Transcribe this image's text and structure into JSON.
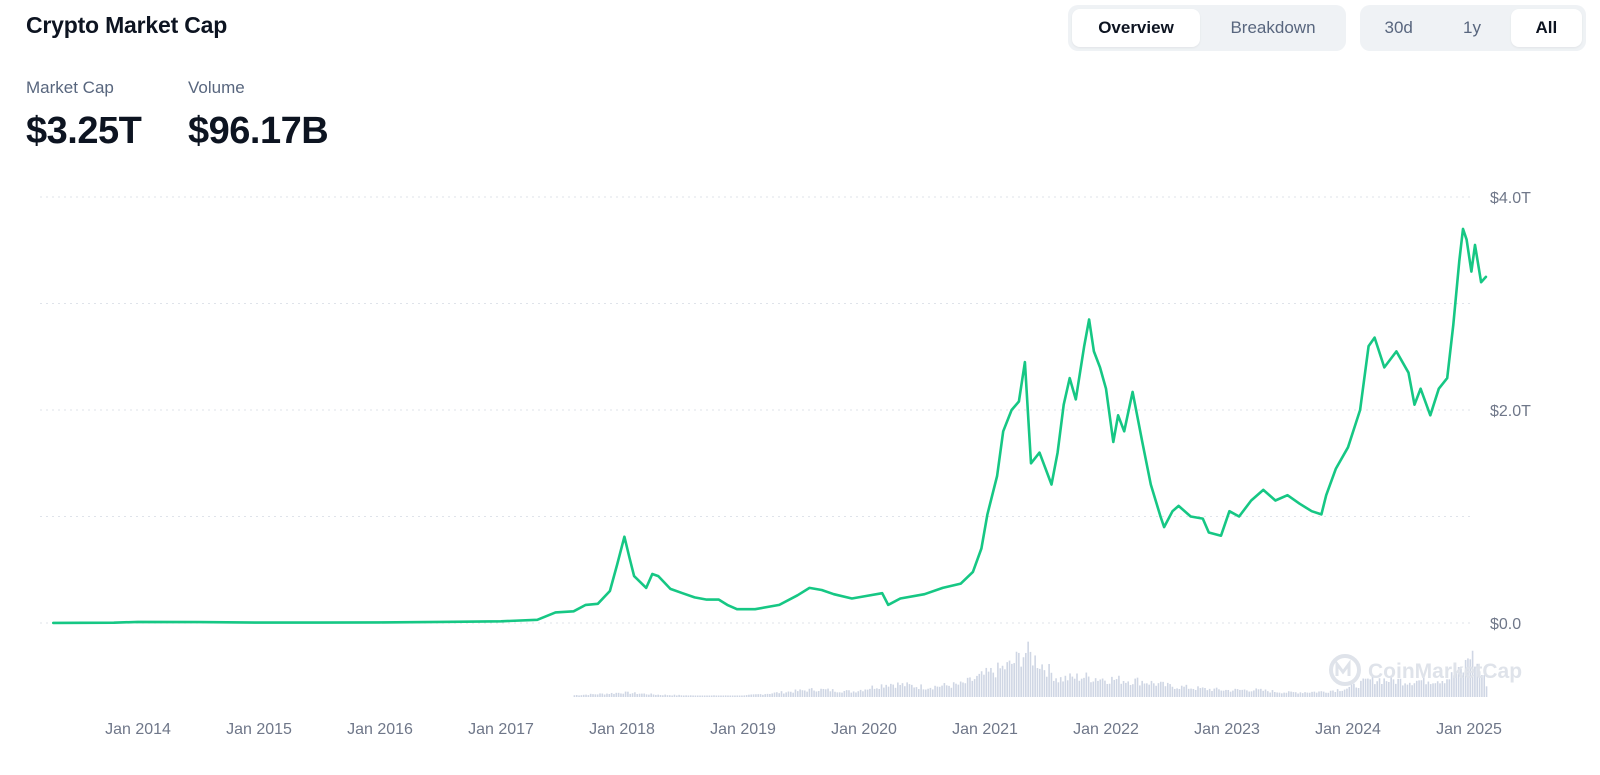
{
  "header": {
    "title": "Crypto Market Cap",
    "view_tabs": [
      "Overview",
      "Breakdown"
    ],
    "view_active": "Overview",
    "range_tabs": [
      "30d",
      "1y",
      "All"
    ],
    "range_active": "All"
  },
  "stats": {
    "market_cap_label": "Market Cap",
    "market_cap_value": "$3.25T",
    "volume_label": "Volume",
    "volume_value": "$96.17B"
  },
  "watermark": "CoinMarketCap",
  "colors": {
    "line": "#16c784",
    "volume": "#cfd6e4",
    "grid": "#dfe3ea",
    "text": "#0d1421",
    "muted": "#58667e"
  },
  "chart_data": {
    "type": "line",
    "title": "",
    "xlabel": "",
    "ylabel": "",
    "x_tick_labels": [
      "Jan 2014",
      "Jan 2015",
      "Jan 2016",
      "Jan 2017",
      "Jan 2018",
      "Jan 2019",
      "Jan 2020",
      "Jan 2021",
      "Jan 2022",
      "Jan 2023",
      "Jan 2024",
      "Jan 2025"
    ],
    "y_tick_labels": [
      "$4.0T",
      "$2.0T",
      "$0.0"
    ],
    "ylim": [
      0,
      4.0
    ],
    "y_unit": "T USD",
    "grid": true,
    "series": [
      {
        "values": [
          [
            2013.3,
            0.001
          ],
          [
            2013.8,
            0.003
          ],
          [
            2014.0,
            0.01
          ],
          [
            2014.5,
            0.008
          ],
          [
            2015.0,
            0.004
          ],
          [
            2015.5,
            0.004
          ],
          [
            2016.0,
            0.006
          ],
          [
            2016.5,
            0.01
          ],
          [
            2017.0,
            0.016
          ],
          [
            2017.3,
            0.03
          ],
          [
            2017.45,
            0.1
          ],
          [
            2017.6,
            0.11
          ],
          [
            2017.7,
            0.17
          ],
          [
            2017.8,
            0.18
          ],
          [
            2017.9,
            0.3
          ],
          [
            2017.96,
            0.55
          ],
          [
            2018.02,
            0.81
          ],
          [
            2018.06,
            0.62
          ],
          [
            2018.1,
            0.44
          ],
          [
            2018.2,
            0.33
          ],
          [
            2018.25,
            0.46
          ],
          [
            2018.3,
            0.44
          ],
          [
            2018.4,
            0.32
          ],
          [
            2018.5,
            0.28
          ],
          [
            2018.6,
            0.24
          ],
          [
            2018.7,
            0.22
          ],
          [
            2018.8,
            0.22
          ],
          [
            2018.87,
            0.17
          ],
          [
            2018.95,
            0.13
          ],
          [
            2019.1,
            0.13
          ],
          [
            2019.3,
            0.17
          ],
          [
            2019.45,
            0.26
          ],
          [
            2019.55,
            0.33
          ],
          [
            2019.65,
            0.31
          ],
          [
            2019.75,
            0.27
          ],
          [
            2019.9,
            0.23
          ],
          [
            2020.0,
            0.25
          ],
          [
            2020.15,
            0.28
          ],
          [
            2020.2,
            0.17
          ],
          [
            2020.3,
            0.23
          ],
          [
            2020.5,
            0.27
          ],
          [
            2020.65,
            0.33
          ],
          [
            2020.8,
            0.37
          ],
          [
            2020.9,
            0.48
          ],
          [
            2020.97,
            0.7
          ],
          [
            2021.02,
            1.02
          ],
          [
            2021.1,
            1.38
          ],
          [
            2021.15,
            1.8
          ],
          [
            2021.22,
            2.0
          ],
          [
            2021.28,
            2.08
          ],
          [
            2021.33,
            2.45
          ],
          [
            2021.38,
            1.5
          ],
          [
            2021.45,
            1.6
          ],
          [
            2021.55,
            1.3
          ],
          [
            2021.6,
            1.6
          ],
          [
            2021.65,
            2.05
          ],
          [
            2021.7,
            2.3
          ],
          [
            2021.75,
            2.1
          ],
          [
            2021.82,
            2.6
          ],
          [
            2021.86,
            2.85
          ],
          [
            2021.9,
            2.55
          ],
          [
            2021.95,
            2.4
          ],
          [
            2022.0,
            2.2
          ],
          [
            2022.06,
            1.7
          ],
          [
            2022.1,
            1.95
          ],
          [
            2022.15,
            1.8
          ],
          [
            2022.22,
            2.17
          ],
          [
            2022.3,
            1.7
          ],
          [
            2022.37,
            1.3
          ],
          [
            2022.45,
            1.0
          ],
          [
            2022.48,
            0.9
          ],
          [
            2022.55,
            1.05
          ],
          [
            2022.6,
            1.1
          ],
          [
            2022.7,
            1.0
          ],
          [
            2022.8,
            0.98
          ],
          [
            2022.85,
            0.85
          ],
          [
            2022.95,
            0.82
          ],
          [
            2023.02,
            1.05
          ],
          [
            2023.1,
            1.0
          ],
          [
            2023.2,
            1.15
          ],
          [
            2023.3,
            1.25
          ],
          [
            2023.4,
            1.15
          ],
          [
            2023.5,
            1.2
          ],
          [
            2023.6,
            1.12
          ],
          [
            2023.7,
            1.05
          ],
          [
            2023.78,
            1.02
          ],
          [
            2023.82,
            1.2
          ],
          [
            2023.9,
            1.45
          ],
          [
            2024.0,
            1.65
          ],
          [
            2024.1,
            2.0
          ],
          [
            2024.17,
            2.6
          ],
          [
            2024.22,
            2.68
          ],
          [
            2024.3,
            2.4
          ],
          [
            2024.4,
            2.55
          ],
          [
            2024.5,
            2.35
          ],
          [
            2024.55,
            2.05
          ],
          [
            2024.6,
            2.2
          ],
          [
            2024.68,
            1.95
          ],
          [
            2024.75,
            2.2
          ],
          [
            2024.82,
            2.3
          ],
          [
            2024.87,
            2.8
          ],
          [
            2024.92,
            3.4
          ],
          [
            2024.95,
            3.7
          ],
          [
            2024.98,
            3.6
          ],
          [
            2025.02,
            3.3
          ],
          [
            2025.05,
            3.55
          ],
          [
            2025.1,
            3.2
          ],
          [
            2025.14,
            3.25
          ]
        ]
      }
    ],
    "volume_series": {
      "unit": "relative",
      "values": [
        [
          2017.6,
          0.04
        ],
        [
          2017.9,
          0.08
        ],
        [
          2018.0,
          0.1
        ],
        [
          2018.3,
          0.05
        ],
        [
          2018.6,
          0.03
        ],
        [
          2019.0,
          0.03
        ],
        [
          2019.3,
          0.1
        ],
        [
          2019.6,
          0.17
        ],
        [
          2019.9,
          0.12
        ],
        [
          2020.2,
          0.3
        ],
        [
          2020.5,
          0.22
        ],
        [
          2020.8,
          0.28
        ],
        [
          2021.0,
          0.5
        ],
        [
          2021.2,
          0.7
        ],
        [
          2021.33,
          1.0
        ],
        [
          2021.45,
          0.75
        ],
        [
          2021.6,
          0.4
        ],
        [
          2021.8,
          0.45
        ],
        [
          2022.0,
          0.4
        ],
        [
          2022.3,
          0.35
        ],
        [
          2022.5,
          0.25
        ],
        [
          2022.8,
          0.18
        ],
        [
          2023.0,
          0.15
        ],
        [
          2023.2,
          0.16
        ],
        [
          2023.5,
          0.1
        ],
        [
          2023.8,
          0.12
        ],
        [
          2024.0,
          0.2
        ],
        [
          2024.2,
          0.4
        ],
        [
          2024.5,
          0.35
        ],
        [
          2024.8,
          0.4
        ],
        [
          2024.95,
          0.6
        ],
        [
          2025.0,
          1.0
        ],
        [
          2025.14,
          0.3
        ]
      ]
    }
  }
}
